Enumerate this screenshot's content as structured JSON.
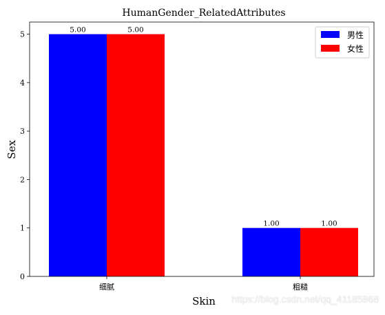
{
  "chart_data": {
    "type": "bar",
    "title": "HumanGender_RelatedAttributes",
    "xlabel": "Skin",
    "ylabel": "Sex",
    "categories": [
      "细腻",
      "粗糙"
    ],
    "series": [
      {
        "name": "男性",
        "color": "#0000ff",
        "values": [
          5.0,
          1.0
        ],
        "labels": [
          "5.00",
          "1.00"
        ]
      },
      {
        "name": "女性",
        "color": "#ff0000",
        "values": [
          5.0,
          1.0
        ],
        "labels": [
          "5.00",
          "1.00"
        ]
      }
    ],
    "ylim": [
      0,
      5.25
    ],
    "yticks": [
      "0",
      "1",
      "2",
      "3",
      "4",
      "5"
    ],
    "grid": false,
    "legend_position": "top-right"
  },
  "watermark": "https://blog.csdn.net/qq_41185868"
}
